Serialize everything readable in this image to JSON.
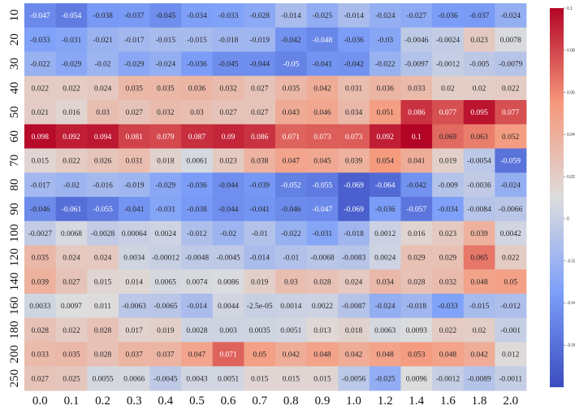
{
  "chart_data": {
    "type": "heatmap",
    "title": "",
    "xlabel": "",
    "ylabel": "",
    "x_categories": [
      "0.0",
      "0.1",
      "0.2",
      "0.3",
      "0.4",
      "0.5",
      "0.6",
      "0.7",
      "0.8",
      "0.9",
      "1.0",
      "1.2",
      "1.4",
      "1.6",
      "1.8",
      "2.0"
    ],
    "y_categories": [
      "10",
      "20",
      "30",
      "40",
      "50",
      "60",
      "70",
      "80",
      "90",
      "100",
      "120",
      "140",
      "160",
      "180",
      "200",
      "250"
    ],
    "values": [
      [
        -0.047,
        -0.054,
        -0.038,
        -0.037,
        -0.045,
        -0.034,
        -0.033,
        -0.028,
        -0.014,
        -0.025,
        -0.014,
        -0.024,
        -0.027,
        -0.036,
        -0.037,
        -0.024
      ],
      [
        -0.033,
        -0.031,
        -0.021,
        -0.017,
        -0.015,
        -0.015,
        -0.018,
        -0.019,
        -0.042,
        -0.048,
        -0.036,
        -0.03,
        -0.0046,
        -0.0024,
        0.023,
        0.0078
      ],
      [
        -0.022,
        -0.029,
        -0.02,
        -0.029,
        -0.024,
        -0.036,
        -0.045,
        -0.044,
        -0.05,
        -0.041,
        -0.042,
        -0.022,
        -0.0097,
        -0.0012,
        -0.005,
        -0.0079
      ],
      [
        0.022,
        0.022,
        0.024,
        0.035,
        0.035,
        0.036,
        0.032,
        0.027,
        0.035,
        0.042,
        0.031,
        0.036,
        0.033,
        0.02,
        0.02,
        0.022
      ],
      [
        0.021,
        0.016,
        0.03,
        0.027,
        0.032,
        0.03,
        0.027,
        0.027,
        0.043,
        0.046,
        0.034,
        0.051,
        0.086,
        0.077,
        0.095,
        0.077
      ],
      [
        0.098,
        0.092,
        0.094,
        0.081,
        0.079,
        0.087,
        0.09,
        0.086,
        0.071,
        0.073,
        0.073,
        0.092,
        0.1,
        0.069,
        0.063,
        0.052
      ],
      [
        0.015,
        0.022,
        0.026,
        0.031,
        0.018,
        0.0061,
        0.023,
        0.038,
        0.047,
        0.045,
        0.039,
        0.054,
        0.041,
        0.019,
        -0.0054,
        -0.059
      ],
      [
        -0.017,
        -0.02,
        -0.016,
        -0.019,
        -0.029,
        -0.036,
        -0.044,
        -0.039,
        -0.052,
        -0.055,
        -0.069,
        -0.064,
        -0.042,
        -0.009,
        -0.0036,
        -0.024
      ],
      [
        -0.046,
        -0.061,
        -0.055,
        -0.041,
        -0.031,
        -0.038,
        -0.044,
        -0.041,
        -0.046,
        -0.047,
        -0.069,
        -0.036,
        -0.057,
        -0.034,
        -0.0084,
        -0.0066
      ],
      [
        -0.0027,
        0.0068,
        -0.0028,
        0.00064,
        0.0024,
        -0.012,
        -0.02,
        -0.01,
        -0.022,
        -0.031,
        -0.018,
        0.0012,
        0.016,
        0.023,
        0.039,
        0.0042
      ],
      [
        0.035,
        0.024,
        0.024,
        0.0034,
        -0.00012,
        -0.0048,
        -0.0045,
        -0.014,
        -0.01,
        -0.0068,
        -0.0083,
        0.0024,
        0.029,
        0.029,
        0.065,
        0.022
      ],
      [
        0.039,
        0.027,
        0.015,
        0.014,
        0.0065,
        0.0074,
        0.0086,
        0.019,
        0.03,
        0.028,
        0.024,
        0.034,
        0.028,
        0.032,
        0.048,
        0.05
      ],
      [
        0.0033,
        0.0097,
        0.011,
        -0.0063,
        -0.0065,
        -0.014,
        0.0044,
        -2.5e-05,
        0.0014,
        0.0022,
        -0.0087,
        -0.024,
        -0.018,
        -0.033,
        -0.015,
        -0.012
      ],
      [
        0.028,
        0.022,
        0.028,
        0.017,
        0.019,
        0.0028,
        0.003,
        0.0035,
        0.0051,
        0.013,
        0.018,
        0.0063,
        0.0093,
        0.022,
        0.02,
        -0.001
      ],
      [
        0.033,
        0.035,
        0.028,
        0.037,
        0.037,
        0.047,
        0.071,
        0.05,
        0.042,
        0.048,
        0.042,
        0.048,
        0.053,
        0.048,
        0.042,
        0.012
      ],
      [
        0.027,
        0.025,
        0.0055,
        0.0066,
        -0.0045,
        0.0043,
        0.0051,
        0.015,
        0.015,
        0.015,
        -0.0056,
        -0.025,
        0.0096,
        -0.0012,
        -0.0089,
        -0.0011
      ]
    ],
    "cell_labels": [
      [
        "-0.047",
        "-0.054",
        "-0.038",
        "-0.037",
        "-0.045",
        "-0.034",
        "-0.033",
        "-0.028",
        "-0.014",
        "-0.025",
        "-0.014",
        "-0.024",
        "-0.027",
        "-0.036",
        "-0.037",
        "-0.024"
      ],
      [
        "-0.033",
        "-0.031",
        "-0.021",
        "-0.017",
        "-0.015",
        "-0.015",
        "-0.018",
        "-0.019",
        "-0.042",
        "-0.048",
        "-0.036",
        "-0.03",
        "-0.0046",
        "-0.0024",
        "0.023",
        "0.0078"
      ],
      [
        "-0.022",
        "-0.029",
        "-0.02",
        "-0.029",
        "-0.024",
        "-0.036",
        "-0.045",
        "-0.044",
        "-0.05",
        "-0.041",
        "-0.042",
        "-0.022",
        "-0.0097",
        "-0.0012",
        "-0.005",
        "-0.0079"
      ],
      [
        "0.022",
        "0.022",
        "0.024",
        "0.035",
        "0.035",
        "0.036",
        "0.032",
        "0.027",
        "0.035",
        "0.042",
        "0.031",
        "0.036",
        "0.033",
        "0.02",
        "0.02",
        "0.022"
      ],
      [
        "0.021",
        "0.016",
        "0.03",
        "0.027",
        "0.032",
        "0.03",
        "0.027",
        "0.027",
        "0.043",
        "0.046",
        "0.034",
        "0.051",
        "0.086",
        "0.077",
        "0.095",
        "0.077"
      ],
      [
        "0.098",
        "0.092",
        "0.094",
        "0.081",
        "0.079",
        "0.087",
        "0.09",
        "0.086",
        "0.071",
        "0.073",
        "0.073",
        "0.092",
        "0.1",
        "0.069",
        "0.063",
        "0.052"
      ],
      [
        "0.015",
        "0.022",
        "0.026",
        "0.031",
        "0.018",
        "0.0061",
        "0.023",
        "0.038",
        "0.047",
        "0.045",
        "0.039",
        "0.054",
        "0.041",
        "0.019",
        "-0.0054",
        "-0.059"
      ],
      [
        "-0.017",
        "-0.02",
        "-0.016",
        "-0.019",
        "-0.029",
        "-0.036",
        "-0.044",
        "-0.039",
        "-0.052",
        "-0.055",
        "-0.069",
        "-0.064",
        "-0.042",
        "-0.009",
        "-0.0036",
        "-0.024"
      ],
      [
        "-0.046",
        "-0.061",
        "-0.055",
        "-0.041",
        "-0.031",
        "-0.038",
        "-0.044",
        "-0.041",
        "-0.046",
        "-0.047",
        "-0.069",
        "-0.036",
        "-0.057",
        "-0.034",
        "-0.0084",
        "-0.0066"
      ],
      [
        "-0.0027",
        "0.0068",
        "-0.0028",
        "0.00064",
        "0.0024",
        "-0.012",
        "-0.02",
        "-0.01",
        "-0.022",
        "-0.031",
        "-0.018",
        "0.0012",
        "0.016",
        "0.023",
        "0.039",
        "0.0042"
      ],
      [
        "0.035",
        "0.024",
        "0.024",
        "0.0034",
        "-0.00012",
        "-0.0048",
        "-0.0045",
        "-0.014",
        "-0.01",
        "-0.0068",
        "-0.0083",
        "0.0024",
        "0.029",
        "0.029",
        "0.065",
        "0.022"
      ],
      [
        "0.039",
        "0.027",
        "0.015",
        "0.014",
        "0.0065",
        "0.0074",
        "0.0086",
        "0.019",
        "0.03",
        "0.028",
        "0.024",
        "0.034",
        "0.028",
        "0.032",
        "0.048",
        "0.05"
      ],
      [
        "0.0033",
        "0.0097",
        "0.011",
        "-0.0063",
        "-0.0065",
        "-0.014",
        "0.0044",
        "-2.5e-05",
        "0.0014",
        "0.0022",
        "-0.0087",
        "-0.024",
        "-0.018",
        "-0.033",
        "-0.015",
        "-0.012"
      ],
      [
        "0.028",
        "0.022",
        "0.028",
        "0.017",
        "0.019",
        "0.0028",
        "0.003",
        "0.0035",
        "0.0051",
        "0.013",
        "0.018",
        "0.0063",
        "0.0093",
        "0.022",
        "0.02",
        "-0.001"
      ],
      [
        "0.033",
        "0.035",
        "0.028",
        "0.037",
        "0.037",
        "0.047",
        "0.071",
        "0.05",
        "0.042",
        "0.048",
        "0.042",
        "0.048",
        "0.053",
        "0.048",
        "0.042",
        "0.012"
      ],
      [
        "0.027",
        "0.025",
        "0.0055",
        "0.0066",
        "-0.0045",
        "0.0043",
        "0.0051",
        "0.015",
        "0.015",
        "0.015",
        "-0.0056",
        "-0.025",
        "0.0096",
        "-0.0012",
        "-0.0089",
        "-0.0011"
      ]
    ],
    "colormap": "coolwarm",
    "color_range": [
      -0.08,
      0.1
    ],
    "colorbar": {
      "placement": "right",
      "ticks": [
        {
          "value": 0.1,
          "label": "0.1"
        },
        {
          "value": 0.08,
          "label": "0.08"
        },
        {
          "value": 0.06,
          "label": "0.06"
        },
        {
          "value": 0.04,
          "label": "0.04"
        },
        {
          "value": 0.02,
          "label": "0.02"
        },
        {
          "value": 0.0,
          "label": "0"
        },
        {
          "value": -0.02,
          "label": "-0.02"
        },
        {
          "value": -0.04,
          "label": "-0.04"
        },
        {
          "value": -0.06,
          "label": "-0.06"
        }
      ]
    },
    "legend": "colorbar-right",
    "grid": false
  }
}
